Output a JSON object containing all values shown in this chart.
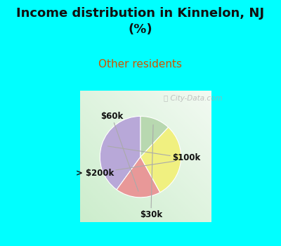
{
  "title": "Income distribution in Kinnelon, NJ\n(%)",
  "subtitle": "Other residents",
  "title_color": "#111111",
  "subtitle_color": "#cc5500",
  "background_cyan": "#00ffff",
  "labels": [
    "$100k",
    "$60k",
    "> $200k",
    "$30k"
  ],
  "values": [
    40,
    18,
    30,
    12
  ],
  "colors": [
    "#b8a8d8",
    "#e89898",
    "#f0f080",
    "#b8d8b0"
  ],
  "startangle": 90,
  "watermark": " City-Data.com",
  "label_fontsize": 8.5,
  "title_fontsize": 13,
  "subtitle_fontsize": 11
}
